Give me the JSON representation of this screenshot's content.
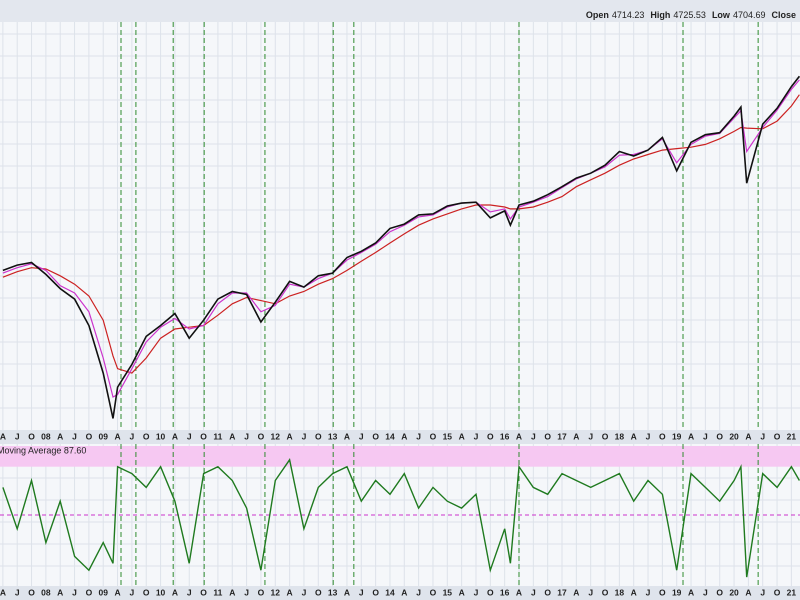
{
  "chart_data": [
    {
      "type": "line",
      "log_scale": true,
      "ohlc": [
        {
          "label": "Open",
          "value": 4714.23
        },
        {
          "label": "High",
          "value": 4725.53
        },
        {
          "label": "Low",
          "value": 4704.69
        },
        {
          "label": "Close"
        }
      ],
      "xlim": [
        2007.2,
        2021.15
      ],
      "ylim": [
        660,
        5200
      ],
      "grid": true,
      "signal_color": "#2e8b2e",
      "signal_lines": [
        2009.31,
        2009.57,
        2010.22,
        2010.76,
        2011.82,
        2013.01,
        2013.37,
        2016.25,
        2019.11,
        2020.42
      ],
      "xticks": [
        {
          "value": 2007.25,
          "label": "A"
        },
        {
          "value": 2007.5,
          "label": "J"
        },
        {
          "value": 2007.75,
          "label": "O"
        },
        {
          "value": 2008,
          "label": "08"
        },
        {
          "value": 2008.25,
          "label": "A"
        },
        {
          "value": 2008.5,
          "label": "J"
        },
        {
          "value": 2008.75,
          "label": "O"
        },
        {
          "value": 2009,
          "label": "09"
        },
        {
          "value": 2009.25,
          "label": "A"
        },
        {
          "value": 2009.5,
          "label": "J"
        },
        {
          "value": 2009.75,
          "label": "O"
        },
        {
          "value": 2010,
          "label": "10"
        },
        {
          "value": 2010.25,
          "label": "A"
        },
        {
          "value": 2010.5,
          "label": "J"
        },
        {
          "value": 2010.75,
          "label": "O"
        },
        {
          "value": 2011,
          "label": "11"
        },
        {
          "value": 2011.25,
          "label": "A"
        },
        {
          "value": 2011.5,
          "label": "J"
        },
        {
          "value": 2011.75,
          "label": "O"
        },
        {
          "value": 2012,
          "label": "12"
        },
        {
          "value": 2012.25,
          "label": "A"
        },
        {
          "value": 2012.5,
          "label": "J"
        },
        {
          "value": 2012.75,
          "label": "O"
        },
        {
          "value": 2013,
          "label": "13"
        },
        {
          "value": 2013.25,
          "label": "A"
        },
        {
          "value": 2013.5,
          "label": "J"
        },
        {
          "value": 2013.75,
          "label": "O"
        },
        {
          "value": 2014,
          "label": "14"
        },
        {
          "value": 2014.25,
          "label": "A"
        },
        {
          "value": 2014.5,
          "label": "J"
        },
        {
          "value": 2014.75,
          "label": "O"
        },
        {
          "value": 2015,
          "label": "15"
        },
        {
          "value": 2015.25,
          "label": "A"
        },
        {
          "value": 2015.5,
          "label": "J"
        },
        {
          "value": 2015.75,
          "label": "O"
        },
        {
          "value": 2016,
          "label": "16"
        },
        {
          "value": 2016.25,
          "label": "A"
        },
        {
          "value": 2016.5,
          "label": "J"
        },
        {
          "value": 2016.75,
          "label": "O"
        },
        {
          "value": 2017,
          "label": "17"
        },
        {
          "value": 2017.25,
          "label": "A"
        },
        {
          "value": 2017.5,
          "label": "J"
        },
        {
          "value": 2017.75,
          "label": "O"
        },
        {
          "value": 2018,
          "label": "18"
        },
        {
          "value": 2018.25,
          "label": "A"
        },
        {
          "value": 2018.5,
          "label": "J"
        },
        {
          "value": 2018.75,
          "label": "O"
        },
        {
          "value": 2019,
          "label": "19"
        },
        {
          "value": 2019.25,
          "label": "A"
        },
        {
          "value": 2019.5,
          "label": "J"
        },
        {
          "value": 2019.75,
          "label": "O"
        },
        {
          "value": 2020,
          "label": "20"
        },
        {
          "value": 2020.25,
          "label": "A"
        },
        {
          "value": 2020.5,
          "label": "J"
        },
        {
          "value": 2020.75,
          "label": "O"
        },
        {
          "value": 2021,
          "label": "21"
        }
      ],
      "x": [
        2007.25,
        2007.5,
        2007.75,
        2008,
        2008.25,
        2008.5,
        2008.75,
        2009,
        2009.17,
        2009.25,
        2009.5,
        2009.75,
        2010,
        2010.25,
        2010.5,
        2010.75,
        2011,
        2011.25,
        2011.5,
        2011.75,
        2012,
        2012.25,
        2012.5,
        2012.75,
        2013,
        2013.25,
        2013.5,
        2013.75,
        2014,
        2014.25,
        2014.5,
        2014.75,
        2015,
        2015.25,
        2015.5,
        2015.75,
        2016,
        2016.1,
        2016.25,
        2016.5,
        2016.75,
        2017,
        2017.25,
        2017.5,
        2017.75,
        2018,
        2018.25,
        2018.5,
        2018.75,
        2019,
        2019.25,
        2019.5,
        2019.75,
        2020,
        2020.12,
        2020.22,
        2020.5,
        2020.75,
        2021,
        2021.14
      ],
      "series": [
        {
          "color": "#cc2222",
          "width": 1.2,
          "values": [
            1430,
            1470,
            1500,
            1490,
            1440,
            1380,
            1300,
            1150,
            960,
            900,
            880,
            950,
            1050,
            1100,
            1110,
            1120,
            1180,
            1250,
            1290,
            1270,
            1250,
            1300,
            1330,
            1380,
            1420,
            1480,
            1550,
            1620,
            1700,
            1780,
            1860,
            1920,
            1970,
            2020,
            2060,
            2060,
            2040,
            2020,
            2020,
            2040,
            2090,
            2150,
            2260,
            2340,
            2420,
            2520,
            2600,
            2660,
            2720,
            2740,
            2760,
            2800,
            2880,
            2990,
            3050,
            3040,
            3030,
            3150,
            3400,
            3600
          ]
        },
        {
          "color": "#cc33cc",
          "width": 1.2,
          "values": [
            1460,
            1500,
            1530,
            1480,
            1370,
            1320,
            1200,
            950,
            780,
            790,
            900,
            1030,
            1110,
            1160,
            1100,
            1120,
            1250,
            1320,
            1320,
            1200,
            1240,
            1380,
            1360,
            1420,
            1460,
            1560,
            1620,
            1690,
            1800,
            1860,
            1940,
            1960,
            2040,
            2080,
            2090,
            1990,
            2020,
            1920,
            2040,
            2090,
            2150,
            2250,
            2350,
            2420,
            2500,
            2650,
            2660,
            2720,
            2880,
            2550,
            2800,
            2920,
            2960,
            3200,
            3320,
            2700,
            3050,
            3330,
            3700,
            3880
          ]
        },
        {
          "color": "#111111",
          "width": 1.6,
          "values": [
            1480,
            1520,
            1540,
            1450,
            1350,
            1280,
            1120,
            880,
            700,
            820,
            920,
            1060,
            1120,
            1190,
            1050,
            1150,
            1280,
            1330,
            1310,
            1140,
            1260,
            1400,
            1360,
            1440,
            1460,
            1580,
            1630,
            1700,
            1830,
            1870,
            1960,
            1970,
            2050,
            2080,
            2090,
            1930,
            2000,
            1860,
            2060,
            2100,
            2170,
            2260,
            2360,
            2420,
            2520,
            2700,
            2640,
            2720,
            2900,
            2450,
            2830,
            2940,
            2970,
            3230,
            3380,
            2300,
            3100,
            3360,
            3750,
            3950
          ]
        }
      ]
    },
    {
      "type": "line",
      "label": "Moving Average 87.60",
      "color": "#1f7a1f",
      "ylim": [
        0,
        100
      ],
      "band": [
        85,
        100
      ],
      "band_color": "#f6c8f2",
      "midline": 50,
      "midline_color": "#cc33cc",
      "values": [
        70,
        40,
        75,
        30,
        60,
        20,
        10,
        30,
        15,
        85,
        80,
        70,
        85,
        60,
        15,
        80,
        85,
        75,
        55,
        10,
        75,
        90,
        40,
        70,
        80,
        85,
        60,
        75,
        65,
        80,
        55,
        70,
        60,
        55,
        65,
        10,
        40,
        15,
        85,
        70,
        65,
        80,
        75,
        70,
        75,
        80,
        60,
        75,
        65,
        10,
        80,
        70,
        60,
        75,
        85,
        5,
        80,
        70,
        85,
        75
      ]
    }
  ]
}
